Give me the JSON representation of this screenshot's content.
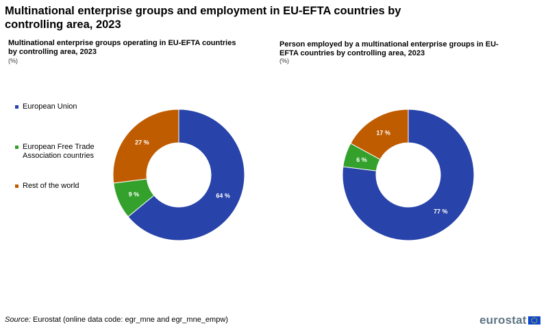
{
  "title": "Multinational enterprise groups and employment in EU-EFTA countries by controlling area, 2023",
  "unit": "(%)",
  "colors": {
    "eu": "#2843a9",
    "efta": "#33a12c",
    "row": "#c05c00"
  },
  "legend": {
    "items": [
      {
        "label": "European Union",
        "color": "#2843a9"
      },
      {
        "label": "European Free Trade Association countries",
        "color": "#33a12c"
      },
      {
        "label": "Rest of the world",
        "color": "#c05c00"
      }
    ]
  },
  "chart_data": [
    {
      "type": "pie",
      "subtype": "donut",
      "title": "Multinational enterprise groups operating in EU-EFTA countries by controlling area, 2023",
      "unit": "(%)",
      "categories": [
        "European Union",
        "European Free Trade Association countries",
        "Rest of the world"
      ],
      "values": [
        64,
        9,
        27
      ],
      "labels": [
        "64 %",
        "9 %",
        "27 %"
      ]
    },
    {
      "type": "pie",
      "subtype": "donut",
      "title": "Person employed by a multinational enterprise groups in EU-EFTA countries by controlling area, 2023",
      "unit": "(%)",
      "categories": [
        "European Union",
        "European Free Trade Association countries",
        "Rest of the world"
      ],
      "values": [
        77,
        6,
        17
      ],
      "labels": [
        "77 %",
        "6 %",
        "17 %"
      ]
    }
  ],
  "source": {
    "prefix": "Source:",
    "text": "Eurostat (online data code: egr_mne and egr_mne_empw)"
  },
  "logo": {
    "text": "eurostat"
  }
}
